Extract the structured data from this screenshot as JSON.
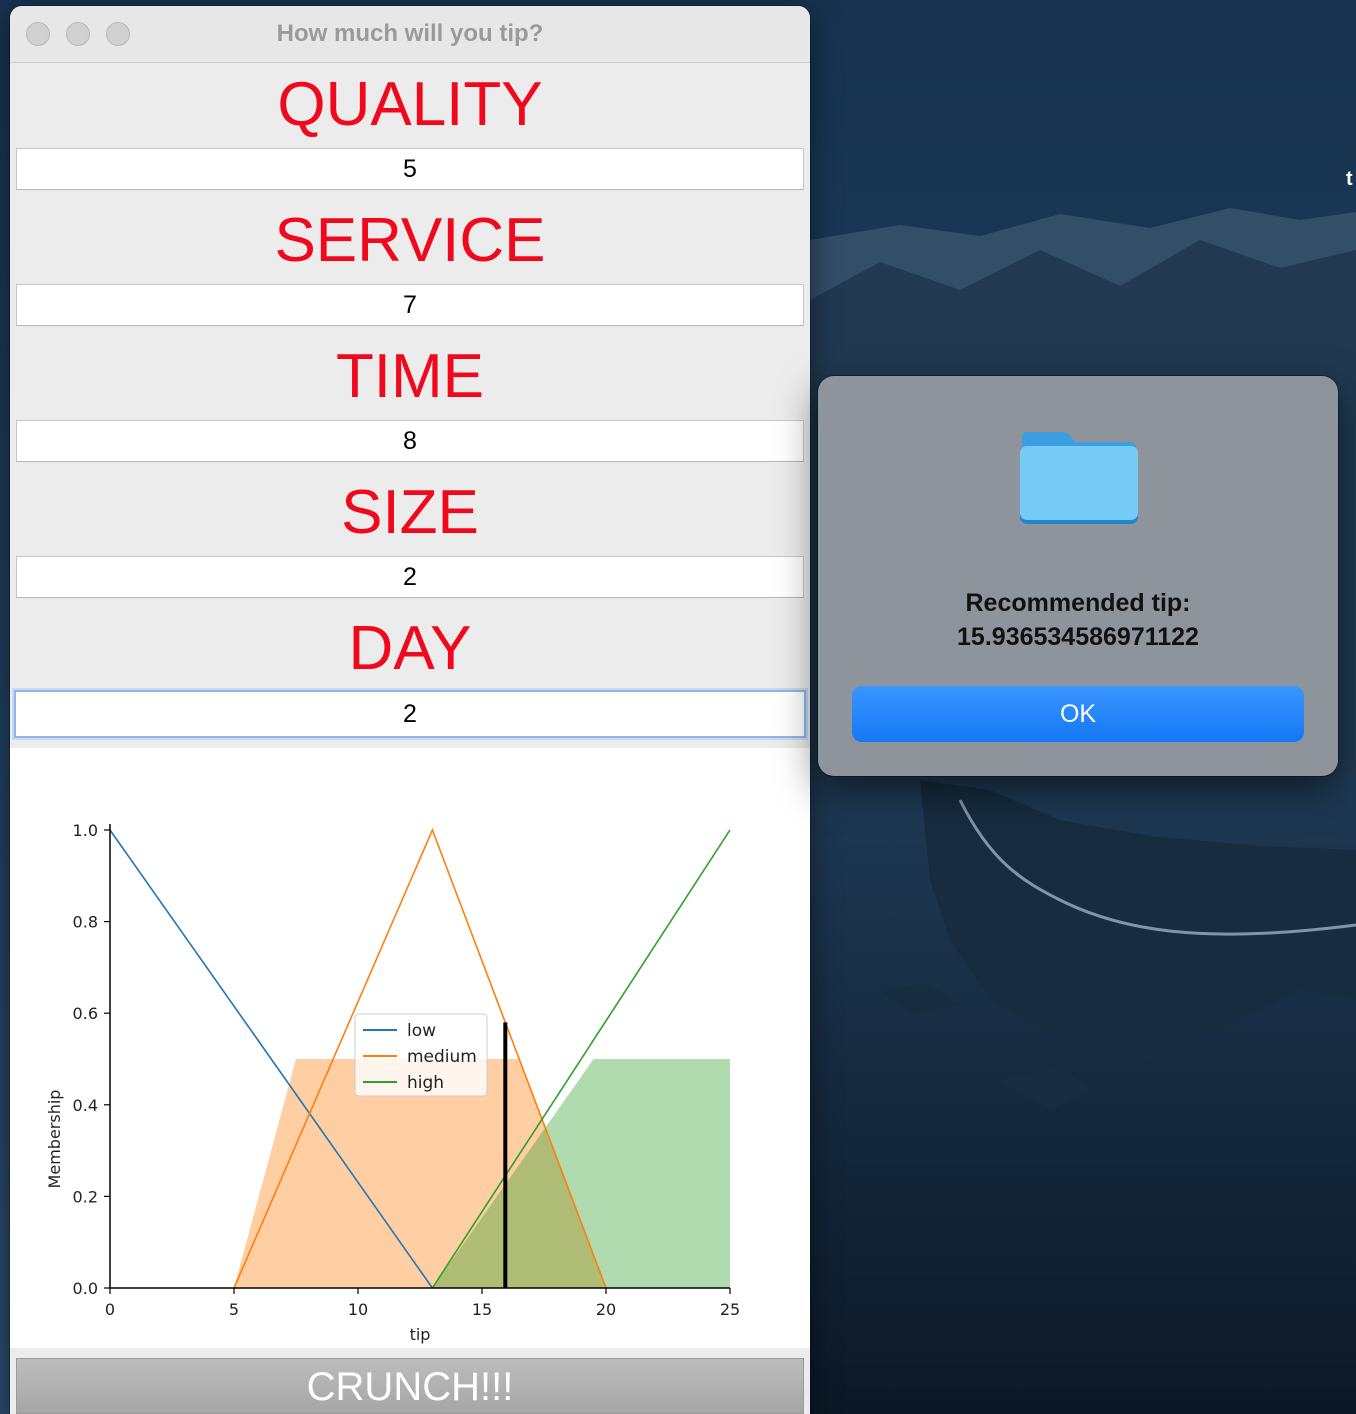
{
  "window": {
    "title": "How much will you tip?"
  },
  "fields": [
    {
      "label": "QUALITY",
      "value": "5"
    },
    {
      "label": "SERVICE",
      "value": "7"
    },
    {
      "label": "TIME",
      "value": "8"
    },
    {
      "label": "SIZE",
      "value": "2"
    },
    {
      "label": "DAY",
      "value": "2"
    }
  ],
  "crunch_button": {
    "label": "CRUNCH!!!"
  },
  "alert": {
    "message_line1": "Recommended tip:",
    "message_line2": "15.936534586971122",
    "ok_label": "OK",
    "icon": "folder-icon"
  },
  "desktop": {
    "edge_text": "t"
  },
  "colors": {
    "label_red": "#f0081d",
    "ok_blue": "#1a7ff6",
    "low": "#1f77b4",
    "medium": "#ff7f0e",
    "high": "#2ca02c"
  },
  "chart_data": {
    "type": "line",
    "xlabel": "tip",
    "ylabel": "Membership",
    "xlim": [
      0,
      25
    ],
    "ylim": [
      0,
      1
    ],
    "xticks": [
      "0",
      "5",
      "10",
      "15",
      "20",
      "25"
    ],
    "yticks": [
      "0.0",
      "0.2",
      "0.4",
      "0.6",
      "0.8",
      "1.0"
    ],
    "legend_position": "center",
    "series": [
      {
        "name": "low",
        "color": "#1f77b4",
        "x": [
          0,
          13
        ],
        "y": [
          1.0,
          0.0
        ]
      },
      {
        "name": "medium",
        "color": "#ff7f0e",
        "x": [
          5,
          13,
          20
        ],
        "y": [
          0.0,
          1.0,
          0.0
        ]
      },
      {
        "name": "high",
        "color": "#2ca02c",
        "x": [
          13,
          25
        ],
        "y": [
          0.0,
          1.0
        ]
      }
    ],
    "fills": [
      {
        "name": "medium-activation",
        "color": "#ff7f0e",
        "x": [
          5,
          7.5,
          16.5,
          20
        ],
        "y": [
          0.0,
          0.5,
          0.5,
          0.0
        ]
      },
      {
        "name": "high-activation",
        "color": "#2ca02c",
        "x": [
          13,
          19.5,
          25,
          25
        ],
        "y": [
          0.0,
          0.5,
          0.5,
          0.0
        ]
      }
    ],
    "result_line": {
      "x": 15.94,
      "y": 0.58
    }
  }
}
